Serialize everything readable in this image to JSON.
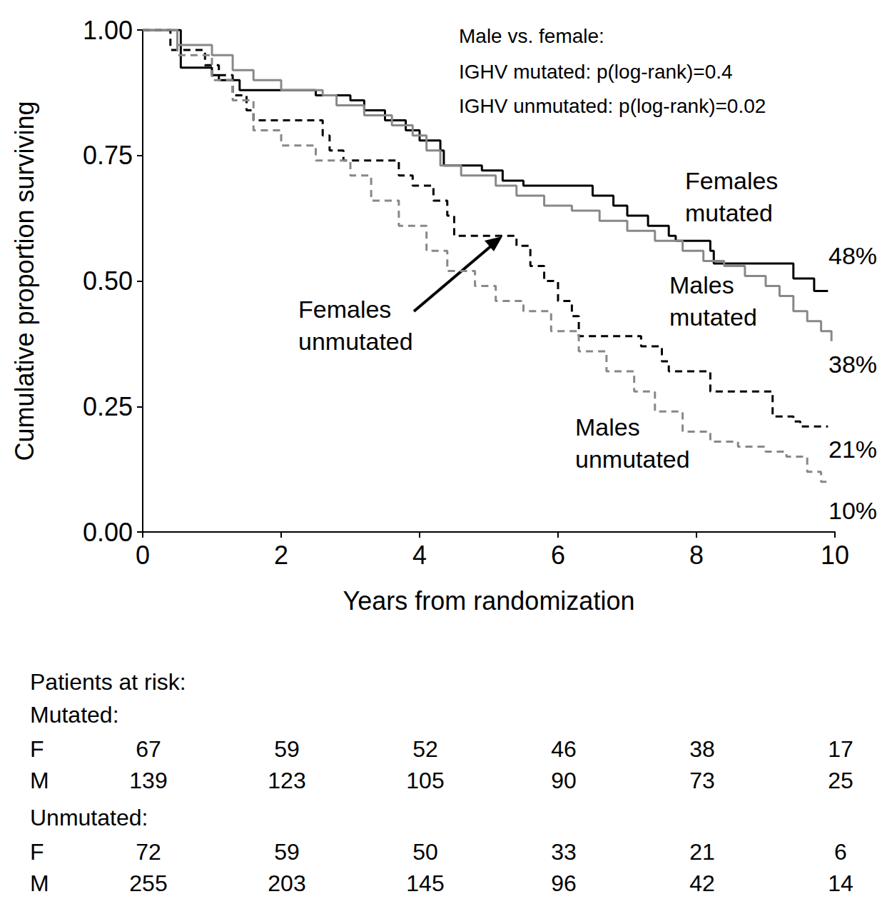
{
  "chart_data": {
    "type": "line",
    "x_label": "Years from randomization",
    "y_label": "Cumulative proportion surviving",
    "xlim": [
      0,
      10
    ],
    "xticks": [
      0,
      2,
      4,
      6,
      8,
      10
    ],
    "ylim": [
      0,
      1
    ],
    "yticks": [
      {
        "value": 0,
        "label": "0.00"
      },
      {
        "value": 0.25,
        "label": "0.25"
      },
      {
        "value": 0.5,
        "label": "0.50"
      },
      {
        "value": 0.75,
        "label": "0.75"
      },
      {
        "value": 1,
        "label": "1.00"
      }
    ],
    "grid": false,
    "annotations": [
      "Male vs. female:",
      "IGHV mutated: p(log-rank)=0.4",
      "IGHV unmutated: p(log-rank)=0.02"
    ],
    "series": [
      {
        "name": "Females mutated",
        "color": "#000000",
        "line_style": "solid",
        "end_label": "48%",
        "x": [
          0,
          0.55,
          1.0,
          1.1,
          1.4,
          2.5,
          3.0,
          3.2,
          3.5,
          3.8,
          4.0,
          4.3,
          4.35,
          4.9,
          5.2,
          5.5,
          6.5,
          6.8,
          7.0,
          7.3,
          7.6,
          7.7,
          8.2,
          8.25,
          9.4,
          9.7,
          9.9
        ],
        "values": [
          1.0,
          0.925,
          0.91,
          0.9,
          0.88,
          0.87,
          0.86,
          0.84,
          0.82,
          0.8,
          0.78,
          0.76,
          0.73,
          0.72,
          0.7,
          0.69,
          0.67,
          0.65,
          0.63,
          0.61,
          0.59,
          0.58,
          0.56,
          0.535,
          0.505,
          0.48,
          0.48
        ]
      },
      {
        "name": "Males mutated",
        "color": "#888888",
        "line_style": "solid",
        "end_label": "38%",
        "x": [
          0,
          0.5,
          1.0,
          1.3,
          1.6,
          2.0,
          2.6,
          2.8,
          3.2,
          3.6,
          3.9,
          4.1,
          4.3,
          4.6,
          5.1,
          5.4,
          5.8,
          6.2,
          6.6,
          7.0,
          7.4,
          7.8,
          8.1,
          8.4,
          8.7,
          9.0,
          9.2,
          9.4,
          9.6,
          9.8,
          9.95
        ],
        "values": [
          1.0,
          0.97,
          0.95,
          0.92,
          0.9,
          0.88,
          0.87,
          0.85,
          0.83,
          0.81,
          0.79,
          0.76,
          0.73,
          0.71,
          0.69,
          0.67,
          0.65,
          0.64,
          0.62,
          0.6,
          0.58,
          0.56,
          0.54,
          0.53,
          0.51,
          0.49,
          0.47,
          0.44,
          0.42,
          0.4,
          0.38
        ]
      },
      {
        "name": "Females unmutated",
        "color": "#000000",
        "line_style": "dashed",
        "end_label": "21%",
        "x": [
          0,
          0.4,
          0.9,
          1.1,
          1.3,
          1.5,
          1.6,
          2.6,
          2.7,
          2.9,
          3.7,
          3.9,
          4.2,
          4.4,
          4.5,
          5.4,
          5.6,
          5.8,
          6.0,
          6.2,
          6.3,
          7.2,
          7.5,
          7.6,
          8.2,
          9.1,
          9.4,
          9.5,
          9.9
        ],
        "values": [
          1.0,
          0.96,
          0.93,
          0.91,
          0.87,
          0.84,
          0.82,
          0.79,
          0.76,
          0.74,
          0.71,
          0.69,
          0.66,
          0.63,
          0.59,
          0.57,
          0.53,
          0.5,
          0.46,
          0.43,
          0.39,
          0.37,
          0.34,
          0.32,
          0.28,
          0.23,
          0.22,
          0.21,
          0.21
        ]
      },
      {
        "name": "Males unmutated",
        "color": "#888888",
        "line_style": "dashed",
        "end_label": "10%",
        "x": [
          0,
          0.5,
          1.0,
          1.3,
          1.6,
          2.0,
          2.5,
          3.0,
          3.3,
          3.7,
          4.1,
          4.4,
          4.8,
          5.1,
          5.5,
          5.9,
          6.3,
          6.7,
          7.1,
          7.4,
          7.8,
          8.2,
          8.6,
          9.0,
          9.3,
          9.6,
          9.8,
          9.9
        ],
        "values": [
          1.0,
          0.95,
          0.9,
          0.86,
          0.8,
          0.77,
          0.74,
          0.71,
          0.66,
          0.61,
          0.56,
          0.52,
          0.49,
          0.46,
          0.44,
          0.4,
          0.36,
          0.32,
          0.28,
          0.24,
          0.2,
          0.18,
          0.17,
          0.16,
          0.15,
          0.12,
          0.1,
          0.1
        ]
      }
    ],
    "risk_table": {
      "title": "Patients at risk:",
      "groups": [
        {
          "label": "Mutated:",
          "rows": [
            {
              "label": "F",
              "values": [
                67,
                59,
                52,
                46,
                38,
                17
              ]
            },
            {
              "label": "M",
              "values": [
                139,
                123,
                105,
                90,
                73,
                25
              ]
            }
          ]
        },
        {
          "label": "Unmutated:",
          "rows": [
            {
              "label": "F",
              "values": [
                72,
                59,
                50,
                33,
                21,
                6
              ]
            },
            {
              "label": "M",
              "values": [
                255,
                203,
                145,
                96,
                42,
                14
              ]
            }
          ]
        }
      ]
    }
  }
}
